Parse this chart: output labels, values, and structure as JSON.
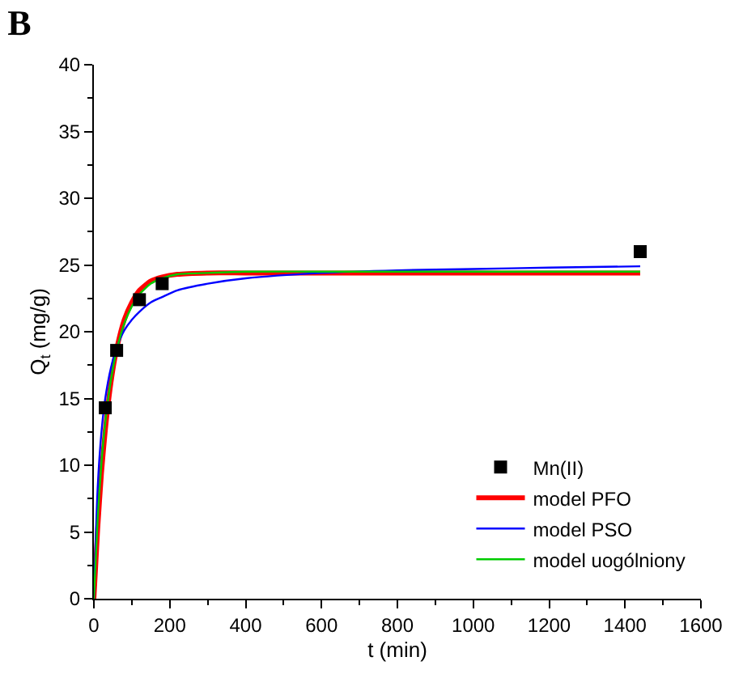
{
  "chart_data": {
    "type": "line",
    "title": "B",
    "xlabel": "t (min)",
    "ylabel": "Q$_{t}$ (mg/g)",
    "xlim": [
      0,
      1600
    ],
    "xticks": [
      0,
      200,
      400,
      600,
      800,
      1000,
      1200,
      1400,
      1600
    ],
    "ylim": [
      0,
      40
    ],
    "yticks": [
      0,
      5,
      10,
      15,
      20,
      25,
      30,
      35,
      40
    ],
    "legend": "bottom right",
    "series": [
      {
        "name": "Mn(II)",
        "type": "scatter",
        "marker": "square",
        "color": "#000000",
        "x": [
          30,
          60,
          120,
          180,
          1440
        ],
        "values": [
          14.3,
          18.6,
          22.4,
          23.6,
          26.0
        ]
      },
      {
        "name": "model PFO",
        "color": "#ff0000",
        "x": [
          0,
          10,
          20,
          30,
          45,
          60,
          80,
          100,
          120,
          150,
          180,
          220,
          300,
          400,
          600,
          800,
          1000,
          1200,
          1440
        ],
        "values": [
          0,
          5.2,
          9.4,
          12.6,
          16.2,
          18.7,
          20.9,
          22.2,
          23.1,
          23.8,
          24.1,
          24.3,
          24.4,
          24.4,
          24.4,
          24.4,
          24.4,
          24.4,
          24.4
        ]
      },
      {
        "name": "model PSO",
        "color": "#0000ff",
        "x": [
          0,
          10,
          20,
          30,
          45,
          60,
          80,
          100,
          120,
          150,
          180,
          220,
          300,
          400,
          600,
          800,
          1000,
          1200,
          1440
        ],
        "values": [
          0,
          8.3,
          12.5,
          15.0,
          17.3,
          18.8,
          20.1,
          20.9,
          21.5,
          22.2,
          22.6,
          23.1,
          23.6,
          24.0,
          24.4,
          24.6,
          24.7,
          24.8,
          24.9
        ]
      },
      {
        "name": "model uogólniony",
        "color": "#00cc00",
        "x": [
          0,
          10,
          20,
          30,
          45,
          60,
          80,
          100,
          120,
          150,
          180,
          220,
          300,
          400,
          600,
          800,
          1000,
          1200,
          1440
        ],
        "values": [
          0,
          6.0,
          10.2,
          13.2,
          16.4,
          18.6,
          20.6,
          21.9,
          22.8,
          23.6,
          24.0,
          24.3,
          24.4,
          24.5,
          24.5,
          24.5,
          24.5,
          24.5,
          24.5
        ]
      }
    ]
  }
}
